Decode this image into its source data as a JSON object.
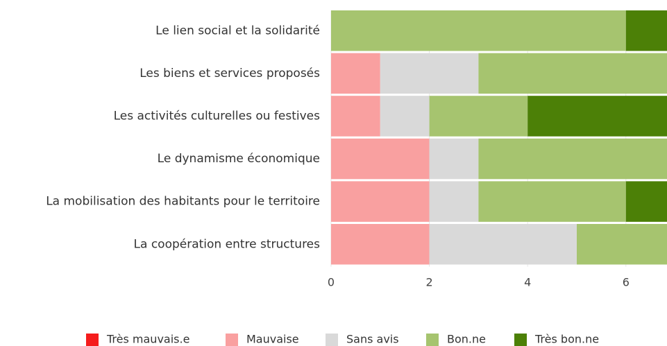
{
  "chart_data": {
    "type": "stacked_barh",
    "categories": [
      "Le lien social et la solidarité",
      "Les biens et services proposés",
      "Les activités culturelles ou festives",
      "Le dynamisme économique",
      "La mobilisation des habitants pour le territoire",
      "La coopération entre structures"
    ],
    "series": [
      {
        "name": "Très mauvais.e",
        "color": "#f51c1c",
        "values": [
          0,
          0,
          0,
          0,
          0,
          0
        ]
      },
      {
        "name": "Mauvaise",
        "color": "#f9a0a0",
        "values": [
          0,
          1,
          1,
          2,
          2,
          2
        ]
      },
      {
        "name": "Sans avis",
        "color": "#d9d9d9",
        "values": [
          0,
          2,
          1,
          1,
          1,
          3
        ]
      },
      {
        "name": "Bon.ne",
        "color": "#a6c46f",
        "values": [
          6,
          4,
          2,
          4,
          3,
          2
        ]
      },
      {
        "name": "Très bon.ne",
        "color": "#4c8007",
        "values": [
          1,
          0,
          3,
          0,
          1,
          0
        ]
      }
    ],
    "xlim": [
      0,
      7
    ],
    "xticks": [
      0,
      2,
      4,
      6
    ],
    "grid": true,
    "legend": "bottom"
  }
}
